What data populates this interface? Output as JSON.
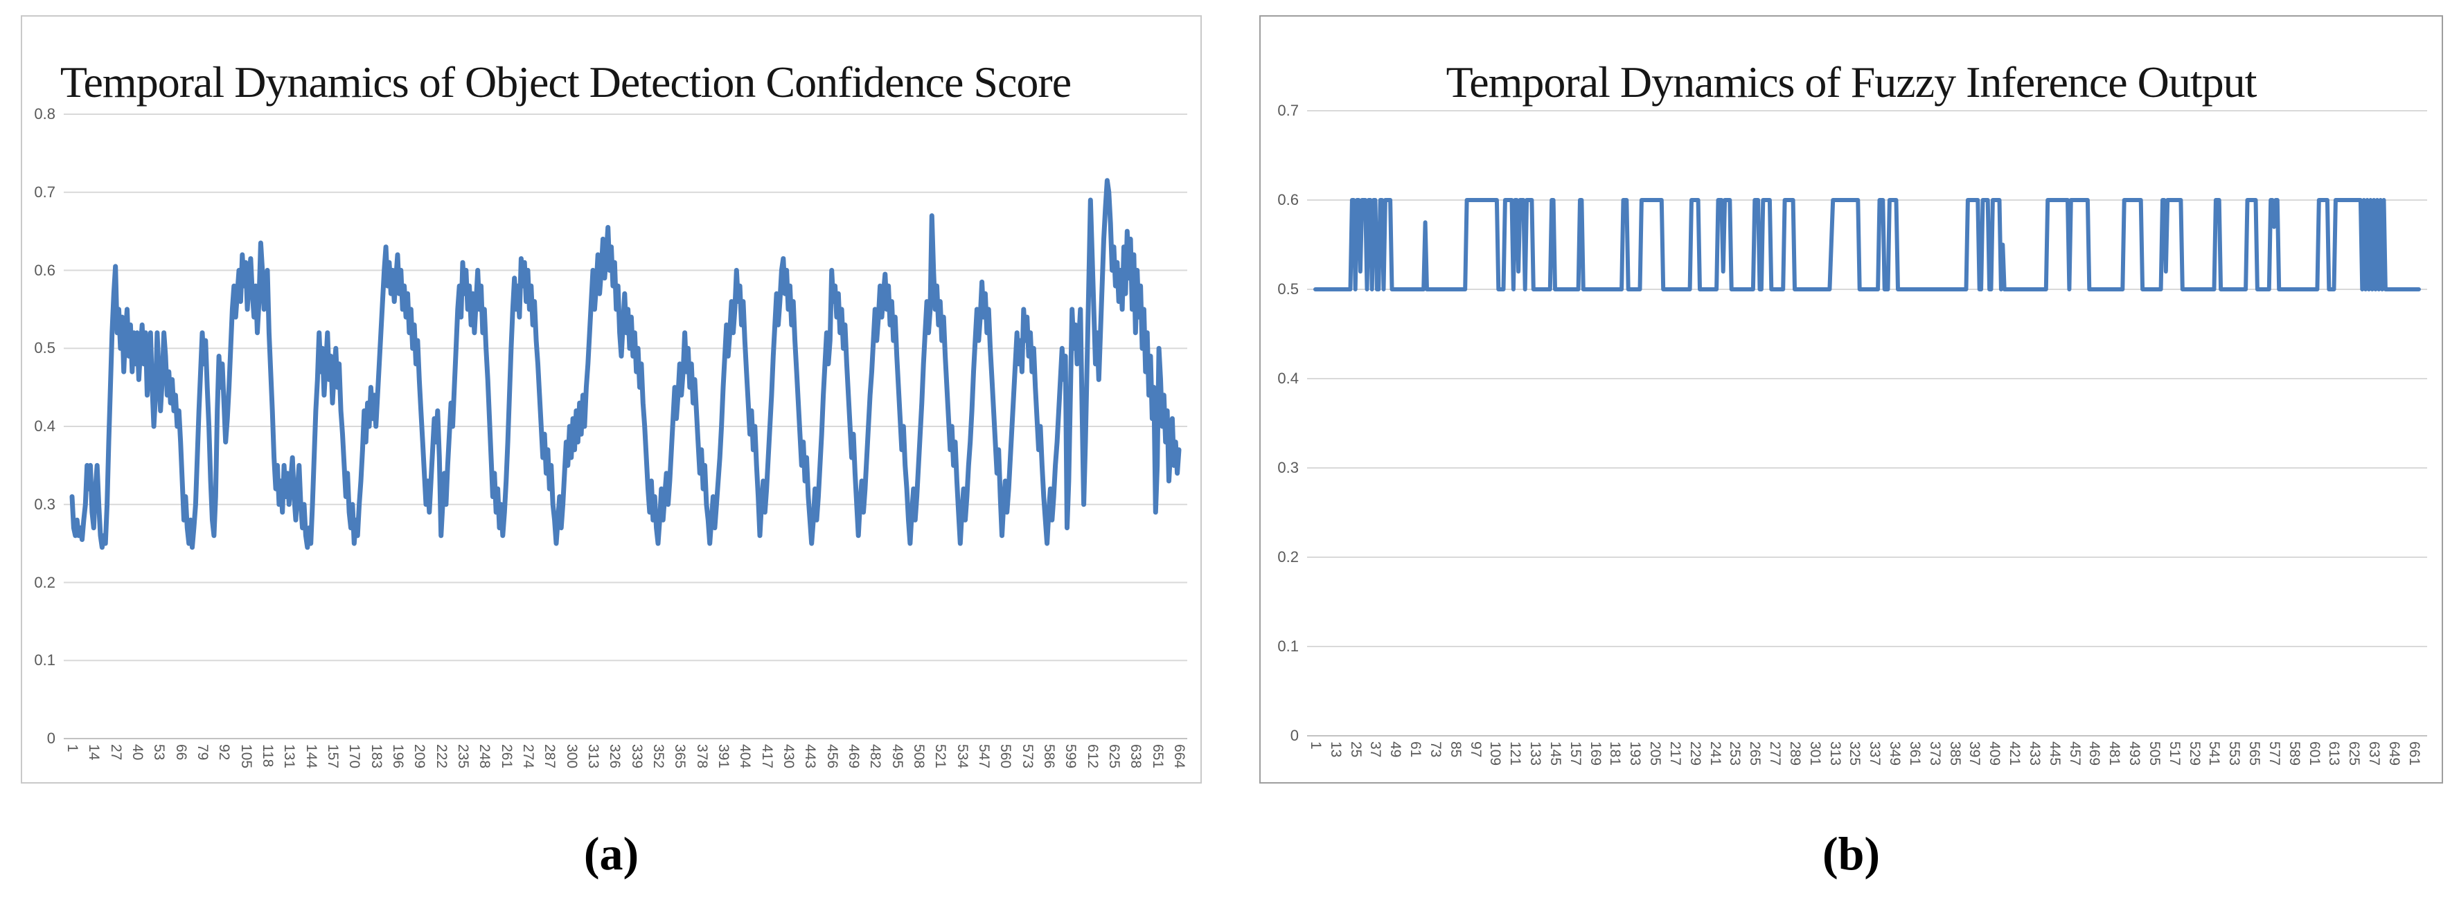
{
  "figure": {
    "caption_a": "(a)",
    "caption_b": "(b)"
  },
  "colors": {
    "line": "#4A7DBC",
    "grid": "#D9D9D9",
    "axis_line": "#C2C2C2",
    "tick_text": "#595959",
    "title_text": "#161616",
    "panel_a_border": "#C9C9C9",
    "panel_b_border": "#9E9E9E"
  },
  "chart_data": [
    {
      "id": "a",
      "type": "line",
      "title": "Temporal Dynamics of Object Detection Confidence Score",
      "xlabel": "",
      "ylabel": "",
      "ylim": [
        0,
        0.8
      ],
      "grid": true,
      "legend": "none",
      "x_range": [
        1,
        664
      ],
      "y_tick_labels": [
        "0.8",
        "0.7",
        "0.6",
        "0.5",
        "0.4",
        "0.3",
        "0.2",
        "0.1",
        "0"
      ],
      "x_tick_labels": [
        1,
        14,
        27,
        40,
        53,
        66,
        79,
        92,
        105,
        118,
        131,
        144,
        157,
        170,
        183,
        196,
        209,
        222,
        235,
        248,
        261,
        274,
        287,
        300,
        313,
        326,
        339,
        352,
        365,
        378,
        391,
        404,
        417,
        430,
        443,
        456,
        469,
        482,
        495,
        508,
        521,
        534,
        547,
        560,
        573,
        586,
        599,
        612,
        625,
        638,
        651,
        664
      ],
      "values": [
        0.31,
        0.27,
        0.26,
        0.28,
        0.26,
        0.27,
        0.255,
        0.28,
        0.3,
        0.35,
        0.32,
        0.35,
        0.29,
        0.27,
        0.32,
        0.35,
        0.3,
        0.26,
        0.245,
        0.26,
        0.25,
        0.3,
        0.38,
        0.45,
        0.52,
        0.57,
        0.605,
        0.52,
        0.55,
        0.5,
        0.54,
        0.47,
        0.52,
        0.55,
        0.49,
        0.53,
        0.47,
        0.52,
        0.48,
        0.52,
        0.46,
        0.5,
        0.53,
        0.48,
        0.52,
        0.44,
        0.48,
        0.52,
        0.45,
        0.4,
        0.44,
        0.52,
        0.47,
        0.42,
        0.46,
        0.52,
        0.49,
        0.44,
        0.47,
        0.43,
        0.46,
        0.42,
        0.44,
        0.4,
        0.42,
        0.38,
        0.33,
        0.28,
        0.31,
        0.27,
        0.25,
        0.28,
        0.245,
        0.27,
        0.3,
        0.36,
        0.42,
        0.47,
        0.52,
        0.48,
        0.51,
        0.45,
        0.4,
        0.33,
        0.28,
        0.26,
        0.31,
        0.42,
        0.49,
        0.45,
        0.48,
        0.43,
        0.38,
        0.41,
        0.45,
        0.5,
        0.55,
        0.58,
        0.54,
        0.57,
        0.6,
        0.56,
        0.62,
        0.58,
        0.61,
        0.55,
        0.59,
        0.615,
        0.57,
        0.54,
        0.58,
        0.52,
        0.56,
        0.635,
        0.6,
        0.55,
        0.58,
        0.6,
        0.52,
        0.47,
        0.42,
        0.36,
        0.32,
        0.35,
        0.3,
        0.33,
        0.29,
        0.35,
        0.31,
        0.34,
        0.3,
        0.33,
        0.36,
        0.31,
        0.28,
        0.32,
        0.35,
        0.3,
        0.27,
        0.3,
        0.26,
        0.245,
        0.27,
        0.25,
        0.3,
        0.36,
        0.42,
        0.46,
        0.52,
        0.47,
        0.5,
        0.44,
        0.48,
        0.52,
        0.46,
        0.49,
        0.43,
        0.47,
        0.5,
        0.45,
        0.48,
        0.42,
        0.39,
        0.35,
        0.31,
        0.34,
        0.29,
        0.27,
        0.3,
        0.25,
        0.28,
        0.26,
        0.3,
        0.33,
        0.37,
        0.42,
        0.38,
        0.43,
        0.4,
        0.45,
        0.41,
        0.44,
        0.4,
        0.44,
        0.48,
        0.52,
        0.56,
        0.6,
        0.63,
        0.58,
        0.61,
        0.57,
        0.6,
        0.56,
        0.59,
        0.62,
        0.57,
        0.6,
        0.55,
        0.58,
        0.54,
        0.57,
        0.52,
        0.55,
        0.5,
        0.53,
        0.48,
        0.51,
        0.46,
        0.42,
        0.38,
        0.34,
        0.3,
        0.33,
        0.29,
        0.33,
        0.37,
        0.41,
        0.38,
        0.42,
        0.36,
        0.26,
        0.3,
        0.34,
        0.3,
        0.35,
        0.39,
        0.43,
        0.4,
        0.45,
        0.5,
        0.55,
        0.58,
        0.54,
        0.61,
        0.57,
        0.6,
        0.55,
        0.58,
        0.53,
        0.57,
        0.52,
        0.56,
        0.6,
        0.55,
        0.58,
        0.52,
        0.55,
        0.5,
        0.46,
        0.41,
        0.36,
        0.31,
        0.34,
        0.29,
        0.32,
        0.27,
        0.3,
        0.26,
        0.29,
        0.33,
        0.38,
        0.44,
        0.5,
        0.55,
        0.59,
        0.55,
        0.58,
        0.54,
        0.615,
        0.58,
        0.61,
        0.56,
        0.6,
        0.55,
        0.58,
        0.53,
        0.56,
        0.51,
        0.48,
        0.44,
        0.4,
        0.36,
        0.39,
        0.34,
        0.37,
        0.32,
        0.35,
        0.3,
        0.28,
        0.25,
        0.28,
        0.31,
        0.27,
        0.3,
        0.34,
        0.38,
        0.35,
        0.4,
        0.36,
        0.41,
        0.37,
        0.42,
        0.38,
        0.43,
        0.39,
        0.44,
        0.4,
        0.45,
        0.48,
        0.52,
        0.56,
        0.6,
        0.55,
        0.58,
        0.62,
        0.57,
        0.6,
        0.64,
        0.59,
        0.62,
        0.655,
        0.6,
        0.63,
        0.58,
        0.61,
        0.55,
        0.58,
        0.52,
        0.49,
        0.53,
        0.57,
        0.52,
        0.55,
        0.5,
        0.54,
        0.49,
        0.52,
        0.47,
        0.5,
        0.45,
        0.48,
        0.43,
        0.4,
        0.36,
        0.32,
        0.29,
        0.33,
        0.28,
        0.31,
        0.27,
        0.25,
        0.28,
        0.32,
        0.28,
        0.31,
        0.34,
        0.3,
        0.33,
        0.37,
        0.41,
        0.45,
        0.41,
        0.44,
        0.48,
        0.44,
        0.47,
        0.52,
        0.47,
        0.5,
        0.45,
        0.48,
        0.43,
        0.46,
        0.42,
        0.38,
        0.34,
        0.37,
        0.32,
        0.35,
        0.3,
        0.28,
        0.25,
        0.28,
        0.31,
        0.27,
        0.3,
        0.33,
        0.36,
        0.4,
        0.45,
        0.49,
        0.53,
        0.49,
        0.52,
        0.56,
        0.52,
        0.55,
        0.6,
        0.56,
        0.58,
        0.53,
        0.56,
        0.51,
        0.47,
        0.43,
        0.39,
        0.42,
        0.37,
        0.4,
        0.35,
        0.31,
        0.26,
        0.3,
        0.33,
        0.29,
        0.32,
        0.36,
        0.4,
        0.44,
        0.49,
        0.53,
        0.57,
        0.53,
        0.56,
        0.6,
        0.615,
        0.57,
        0.6,
        0.55,
        0.58,
        0.53,
        0.56,
        0.51,
        0.47,
        0.43,
        0.39,
        0.35,
        0.38,
        0.33,
        0.36,
        0.31,
        0.28,
        0.25,
        0.28,
        0.32,
        0.28,
        0.31,
        0.35,
        0.39,
        0.44,
        0.48,
        0.52,
        0.48,
        0.51,
        0.6,
        0.56,
        0.58,
        0.54,
        0.57,
        0.52,
        0.55,
        0.5,
        0.53,
        0.48,
        0.44,
        0.4,
        0.36,
        0.39,
        0.34,
        0.3,
        0.26,
        0.3,
        0.33,
        0.29,
        0.32,
        0.36,
        0.4,
        0.44,
        0.47,
        0.51,
        0.55,
        0.51,
        0.54,
        0.58,
        0.54,
        0.57,
        0.595,
        0.55,
        0.58,
        0.53,
        0.56,
        0.51,
        0.54,
        0.49,
        0.45,
        0.41,
        0.37,
        0.4,
        0.35,
        0.32,
        0.28,
        0.25,
        0.29,
        0.32,
        0.28,
        0.31,
        0.35,
        0.39,
        0.43,
        0.48,
        0.52,
        0.56,
        0.52,
        0.55,
        0.67,
        0.6,
        0.55,
        0.58,
        0.53,
        0.56,
        0.51,
        0.54,
        0.49,
        0.45,
        0.41,
        0.37,
        0.4,
        0.35,
        0.38,
        0.33,
        0.29,
        0.25,
        0.29,
        0.32,
        0.28,
        0.31,
        0.35,
        0.38,
        0.42,
        0.47,
        0.51,
        0.55,
        0.51,
        0.54,
        0.585,
        0.54,
        0.57,
        0.52,
        0.55,
        0.5,
        0.46,
        0.42,
        0.38,
        0.34,
        0.37,
        0.31,
        0.26,
        0.3,
        0.33,
        0.29,
        0.32,
        0.36,
        0.4,
        0.44,
        0.48,
        0.52,
        0.48,
        0.51,
        0.47,
        0.55,
        0.51,
        0.54,
        0.49,
        0.52,
        0.47,
        0.5,
        0.45,
        0.41,
        0.37,
        0.4,
        0.35,
        0.31,
        0.28,
        0.25,
        0.29,
        0.32,
        0.28,
        0.31,
        0.35,
        0.38,
        0.42,
        0.46,
        0.5,
        0.46,
        0.49,
        0.27,
        0.33,
        0.44,
        0.55,
        0.5,
        0.53,
        0.48,
        0.51,
        0.55,
        0.42,
        0.3,
        0.38,
        0.48,
        0.58,
        0.69,
        0.62,
        0.55,
        0.48,
        0.52,
        0.46,
        0.52,
        0.58,
        0.64,
        0.68,
        0.715,
        0.7,
        0.66,
        0.6,
        0.63,
        0.58,
        0.61,
        0.56,
        0.6,
        0.55,
        0.63,
        0.57,
        0.65,
        0.59,
        0.64,
        0.55,
        0.62,
        0.52,
        0.6,
        0.54,
        0.58,
        0.5,
        0.55,
        0.47,
        0.52,
        0.44,
        0.49,
        0.41,
        0.45,
        0.29,
        0.35,
        0.5,
        0.46,
        0.4,
        0.44,
        0.38,
        0.42,
        0.33,
        0.37,
        0.41,
        0.35,
        0.38,
        0.34,
        0.37
      ]
    },
    {
      "id": "b",
      "type": "step-line",
      "title": "Temporal Dynamics of Fuzzy Inference Output",
      "xlabel": "",
      "ylabel": "",
      "ylim": [
        0,
        0.7
      ],
      "grid": true,
      "legend": "none",
      "x_range": [
        1,
        664
      ],
      "y_tick_labels": [
        "0.7",
        "0.6",
        "0.5",
        "0.4",
        "0.3",
        "0.2",
        "0.1",
        "0"
      ],
      "x_tick_labels": [
        1,
        13,
        25,
        37,
        49,
        61,
        73,
        85,
        97,
        109,
        121,
        133,
        145,
        157,
        169,
        181,
        193,
        205,
        217,
        229,
        241,
        253,
        265,
        277,
        289,
        301,
        313,
        325,
        337,
        349,
        361,
        373,
        385,
        397,
        409,
        421,
        433,
        445,
        457,
        469,
        481,
        493,
        505,
        517,
        529,
        541,
        553,
        565,
        577,
        589,
        601,
        613,
        625,
        637,
        649,
        661
      ],
      "segments": [
        [
          1,
          22,
          0.5
        ],
        [
          23,
          24,
          0.6
        ],
        [
          25,
          25,
          0.5
        ],
        [
          26,
          27,
          0.6
        ],
        [
          28,
          28,
          0.52
        ],
        [
          29,
          31,
          0.6
        ],
        [
          32,
          32,
          0.5
        ],
        [
          33,
          34,
          0.6
        ],
        [
          35,
          35,
          0.5
        ],
        [
          36,
          37,
          0.6
        ],
        [
          38,
          39,
          0.5
        ],
        [
          40,
          41,
          0.6
        ],
        [
          42,
          42,
          0.5
        ],
        [
          43,
          46,
          0.6
        ],
        [
          47,
          66,
          0.5
        ],
        [
          67,
          67,
          0.575
        ],
        [
          68,
          91,
          0.5
        ],
        [
          92,
          110,
          0.6
        ],
        [
          111,
          114,
          0.5
        ],
        [
          115,
          119,
          0.6
        ],
        [
          120,
          120,
          0.5
        ],
        [
          121,
          122,
          0.6
        ],
        [
          123,
          123,
          0.52
        ],
        [
          124,
          126,
          0.6
        ],
        [
          127,
          127,
          0.5
        ],
        [
          128,
          131,
          0.6
        ],
        [
          132,
          142,
          0.5
        ],
        [
          143,
          144,
          0.6
        ],
        [
          145,
          159,
          0.5
        ],
        [
          160,
          161,
          0.6
        ],
        [
          162,
          185,
          0.5
        ],
        [
          186,
          188,
          0.6
        ],
        [
          189,
          196,
          0.5
        ],
        [
          197,
          209,
          0.6
        ],
        [
          210,
          226,
          0.5
        ],
        [
          227,
          231,
          0.6
        ],
        [
          232,
          242,
          0.5
        ],
        [
          243,
          245,
          0.6
        ],
        [
          246,
          246,
          0.52
        ],
        [
          247,
          250,
          0.6
        ],
        [
          251,
          264,
          0.5
        ],
        [
          265,
          267,
          0.6
        ],
        [
          268,
          269,
          0.5
        ],
        [
          270,
          274,
          0.6
        ],
        [
          275,
          282,
          0.5
        ],
        [
          283,
          288,
          0.6
        ],
        [
          289,
          310,
          0.5
        ],
        [
          311,
          311,
          0.55
        ],
        [
          312,
          327,
          0.6
        ],
        [
          328,
          339,
          0.5
        ],
        [
          340,
          342,
          0.6
        ],
        [
          343,
          345,
          0.5
        ],
        [
          346,
          350,
          0.6
        ],
        [
          351,
          392,
          0.5
        ],
        [
          393,
          399,
          0.6
        ],
        [
          400,
          401,
          0.5
        ],
        [
          402,
          405,
          0.6
        ],
        [
          406,
          407,
          0.5
        ],
        [
          408,
          412,
          0.6
        ],
        [
          413,
          413,
          0.5
        ],
        [
          414,
          414,
          0.55
        ],
        [
          415,
          440,
          0.5
        ],
        [
          441,
          453,
          0.6
        ],
        [
          454,
          454,
          0.5
        ],
        [
          455,
          465,
          0.6
        ],
        [
          466,
          486,
          0.5
        ],
        [
          487,
          497,
          0.6
        ],
        [
          498,
          509,
          0.5
        ],
        [
          510,
          511,
          0.6
        ],
        [
          512,
          512,
          0.52
        ],
        [
          513,
          521,
          0.6
        ],
        [
          522,
          541,
          0.5
        ],
        [
          542,
          544,
          0.6
        ],
        [
          545,
          560,
          0.5
        ],
        [
          561,
          566,
          0.6
        ],
        [
          567,
          574,
          0.5
        ],
        [
          575,
          576,
          0.6
        ],
        [
          577,
          577,
          0.57
        ],
        [
          578,
          579,
          0.6
        ],
        [
          580,
          603,
          0.5
        ],
        [
          604,
          609,
          0.6
        ],
        [
          610,
          613,
          0.5
        ],
        [
          614,
          629,
          0.6
        ],
        [
          630,
          630,
          0.5
        ],
        [
          631,
          631,
          0.6
        ],
        [
          632,
          632,
          0.5
        ],
        [
          633,
          633,
          0.6
        ],
        [
          634,
          634,
          0.5
        ],
        [
          635,
          635,
          0.6
        ],
        [
          636,
          636,
          0.5
        ],
        [
          637,
          637,
          0.6
        ],
        [
          638,
          638,
          0.5
        ],
        [
          639,
          639,
          0.6
        ],
        [
          640,
          640,
          0.5
        ],
        [
          641,
          641,
          0.6
        ],
        [
          642,
          642,
          0.5
        ],
        [
          643,
          643,
          0.6
        ],
        [
          644,
          664,
          0.5
        ]
      ]
    }
  ]
}
